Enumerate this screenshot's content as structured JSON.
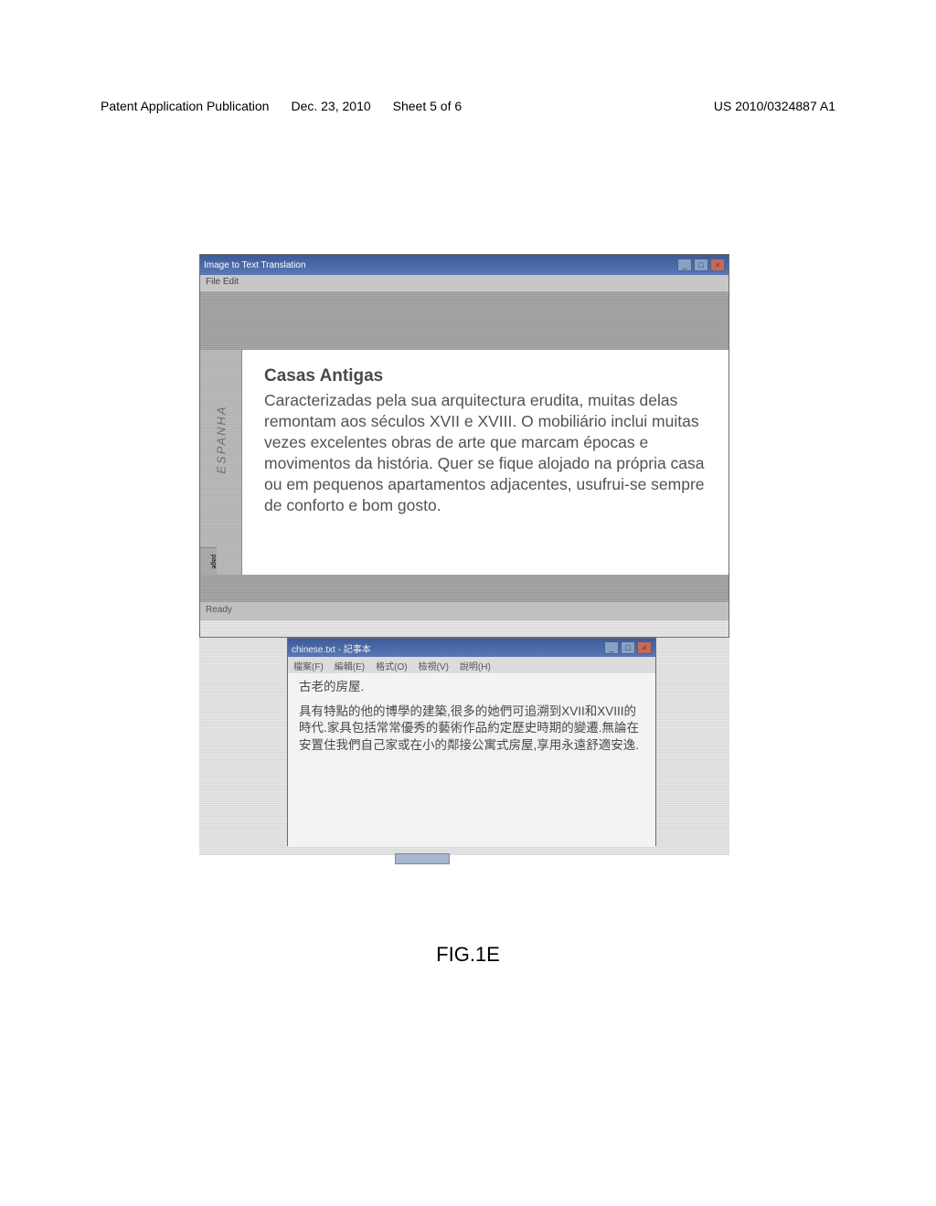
{
  "header": {
    "left1": "Patent Application Publication",
    "left2": "Dec. 23, 2010",
    "sheet": "Sheet 5 of 6",
    "right": "US 2010/0324887 A1"
  },
  "mainWindow": {
    "title": "Image to Text Translation",
    "menu": "File  Edit",
    "sideLabel": "ESPANHA",
    "sideSmall": "page",
    "heading": "Casas Antigas",
    "body": "Caracterizadas pela sua arquitectura erudita, muitas delas remontam aos séculos XVII e XVIII. O mobiliário inclui muitas vezes excelentes obras de arte que marcam épocas e movimentos da história. Quer se fique alojado na própria casa ou em pequenos apartamentos adjacentes, usufrui-se sempre de conforto e bom gosto.",
    "status": "Ready"
  },
  "subWindow": {
    "title": "chinese.txt - 記事本",
    "menu": [
      "檔案(F)",
      "編輯(E)",
      "格式(O)",
      "檢視(V)",
      "說明(H)"
    ],
    "line1": "古老的房屋.",
    "body": "具有特點的他的博學的建築,很多的她們可追溯到XVII和XVIII的時代.家具包括常常優秀的藝術作品約定歷史時期的變遷.無論在安置住我們自己家或在小的鄰接公寓式房屋,享用永遠舒適安逸."
  },
  "figure": "FIG.1E",
  "winbtns": {
    "min": "_",
    "max": "□",
    "close": "×"
  }
}
